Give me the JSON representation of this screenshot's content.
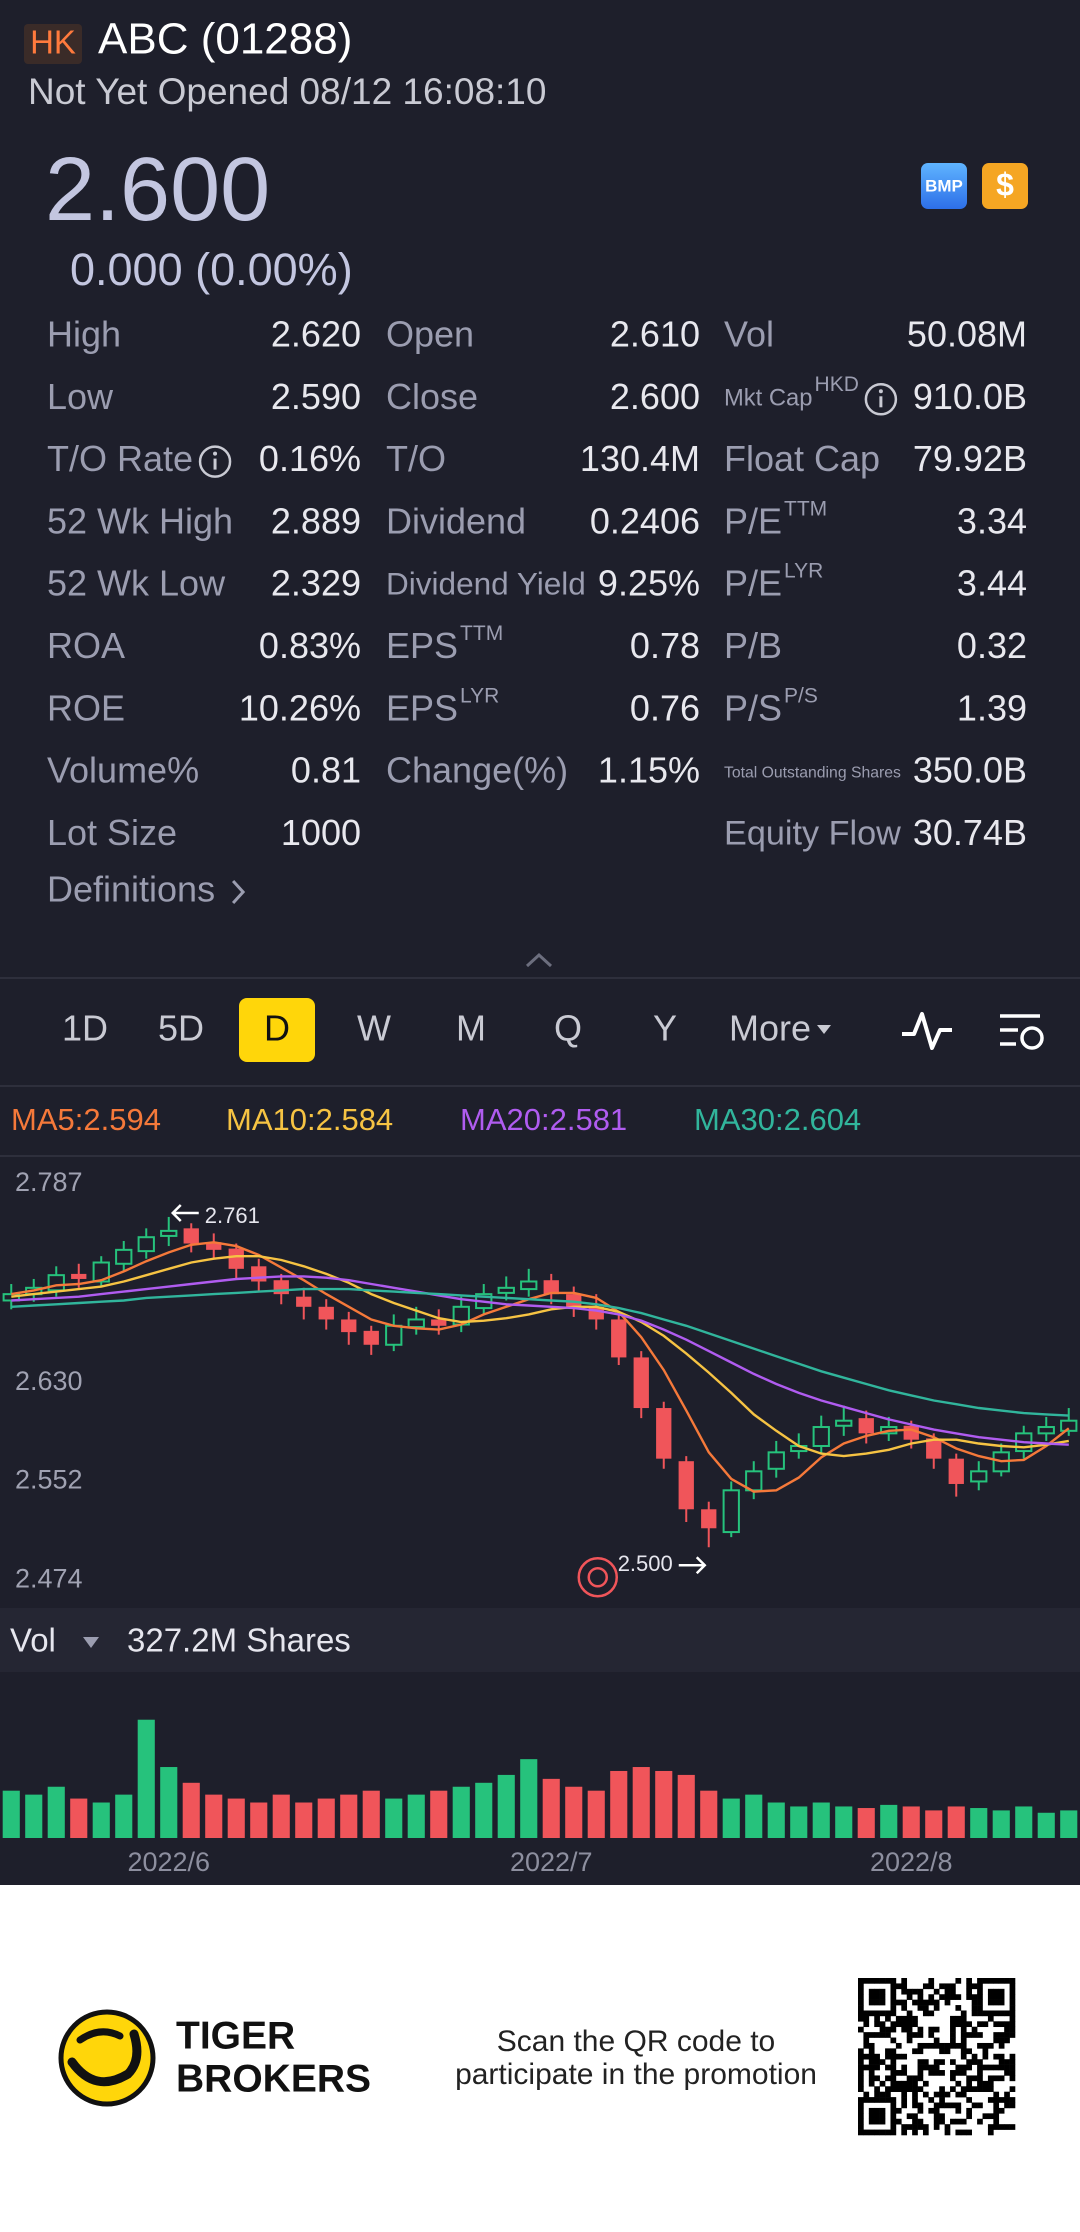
{
  "header": {
    "market": "HK",
    "name": "ABC (01288)",
    "status": "Not Yet Opened 08/12 16:08:10",
    "price": "2.600",
    "change": "0.000 (0.00%)",
    "badges": [
      "BMP",
      "$"
    ]
  },
  "stats": [
    [
      {
        "label": "High",
        "value": "2.620"
      },
      {
        "label": "Low",
        "value": "2.590"
      },
      {
        "label": "T/O Rate",
        "info": true,
        "value": "0.16%"
      },
      {
        "label": "52 Wk High",
        "value": "2.889"
      },
      {
        "label": "52 Wk Low",
        "value": "2.329"
      },
      {
        "label": "ROA",
        "value": "0.83%"
      },
      {
        "label": "ROE",
        "value": "10.26%"
      },
      {
        "label": "Volume%",
        "value": "0.81"
      },
      {
        "label": "Lot Size",
        "value": "1000"
      }
    ],
    [
      {
        "label": "Open",
        "value": "2.610"
      },
      {
        "label": "Close",
        "value": "2.600"
      },
      {
        "label": "T/O",
        "value": "130.4M"
      },
      {
        "label": "Dividend",
        "value": "0.2406"
      },
      {
        "label": "Dividend Yield",
        "value": "9.25%"
      },
      {
        "label": "EPS",
        "sup": "TTM",
        "value": "0.78"
      },
      {
        "label": "EPS",
        "sup": "LYR",
        "value": "0.76"
      },
      {
        "label": "Change(%)",
        "value": "1.15%"
      }
    ],
    [
      {
        "label": "Vol",
        "value": "50.08M"
      },
      {
        "label": "Mkt Cap",
        "sup": "HKD",
        "info": true,
        "value": "910.0B"
      },
      {
        "label": "Float Cap",
        "value": "79.92B"
      },
      {
        "label": "P/E",
        "sup": "TTM",
        "value": "3.34"
      },
      {
        "label": "P/E",
        "sup": "LYR",
        "value": "3.44"
      },
      {
        "label": "P/B",
        "value": "0.32"
      },
      {
        "label": "P/S",
        "sup": "P/S",
        "value": "1.39"
      },
      {
        "label": "Total Outstanding Shares",
        "value": "350.0B"
      },
      {
        "label": "Equity Flow",
        "value": "30.74B"
      }
    ]
  ],
  "definitions": "Definitions",
  "tabs": {
    "items": [
      "1D",
      "5D",
      "D",
      "W",
      "M",
      "Q",
      "Y",
      "More"
    ],
    "active": 2
  },
  "chart_data": {
    "type": "candlestick",
    "up_color": "#26c27c",
    "down_color": "#f0555a",
    "categories": [
      null,
      null,
      null,
      null,
      null,
      null,
      null,
      "2022/6",
      null,
      null,
      null,
      null,
      null,
      null,
      null,
      null,
      null,
      null,
      null,
      null,
      null,
      null,
      null,
      null,
      "2022/7",
      null,
      null,
      null,
      null,
      null,
      null,
      null,
      null,
      null,
      null,
      null,
      null,
      null,
      null,
      null,
      "2022/8",
      null,
      null,
      null,
      null,
      null,
      null,
      null
    ],
    "candles": {
      "open": [
        2.695,
        2.7,
        2.703,
        2.716,
        2.71,
        2.724,
        2.734,
        2.746,
        2.752,
        2.741,
        2.736,
        2.722,
        2.711,
        2.698,
        2.69,
        2.68,
        2.671,
        2.66,
        2.674,
        2.68,
        2.676,
        2.689,
        2.701,
        2.704,
        2.711,
        2.7,
        2.69,
        2.68,
        2.65,
        2.61,
        2.568,
        2.53,
        2.512,
        2.545,
        2.562,
        2.576,
        2.58,
        2.596,
        2.602,
        2.59,
        2.596,
        2.586,
        2.57,
        2.552,
        2.56,
        2.576,
        2.59,
        2.592
      ],
      "high": [
        2.708,
        2.712,
        2.722,
        2.724,
        2.73,
        2.742,
        2.752,
        2.761,
        2.756,
        2.748,
        2.74,
        2.728,
        2.716,
        2.705,
        2.696,
        2.686,
        2.675,
        2.684,
        2.69,
        2.688,
        2.698,
        2.708,
        2.714,
        2.72,
        2.716,
        2.706,
        2.7,
        2.684,
        2.655,
        2.615,
        2.572,
        2.536,
        2.552,
        2.568,
        2.584,
        2.59,
        2.604,
        2.612,
        2.608,
        2.603,
        2.6,
        2.59,
        2.574,
        2.568,
        2.582,
        2.596,
        2.603,
        2.61
      ],
      "low": [
        2.688,
        2.694,
        2.698,
        2.705,
        2.706,
        2.718,
        2.728,
        2.738,
        2.733,
        2.728,
        2.712,
        2.702,
        2.692,
        2.68,
        2.672,
        2.66,
        2.652,
        2.655,
        2.668,
        2.668,
        2.67,
        2.684,
        2.695,
        2.698,
        2.692,
        2.682,
        2.672,
        2.644,
        2.602,
        2.562,
        2.52,
        2.5,
        2.508,
        2.538,
        2.555,
        2.57,
        2.574,
        2.588,
        2.582,
        2.584,
        2.578,
        2.562,
        2.54,
        2.545,
        2.556,
        2.57,
        2.584,
        2.588
      ],
      "close": [
        2.7,
        2.705,
        2.715,
        2.712,
        2.725,
        2.735,
        2.745,
        2.75,
        2.74,
        2.735,
        2.72,
        2.71,
        2.7,
        2.69,
        2.68,
        2.67,
        2.66,
        2.675,
        2.68,
        2.675,
        2.69,
        2.7,
        2.705,
        2.71,
        2.7,
        2.69,
        2.68,
        2.65,
        2.61,
        2.57,
        2.53,
        2.515,
        2.545,
        2.56,
        2.575,
        2.58,
        2.595,
        2.6,
        2.59,
        2.595,
        2.585,
        2.57,
        2.55,
        2.56,
        2.575,
        2.59,
        2.595,
        2.6
      ]
    },
    "series": [
      {
        "name": "MA5:2.594",
        "color": "#f5793a",
        "values": [
          2.7,
          2.703,
          2.707,
          2.708,
          2.711,
          2.718,
          2.726,
          2.733,
          2.739,
          2.741,
          2.738,
          2.731,
          2.721,
          2.711,
          2.7,
          2.69,
          2.68,
          2.675,
          2.673,
          2.672,
          2.676,
          2.684,
          2.69,
          2.696,
          2.701,
          2.701,
          2.697,
          2.686,
          2.666,
          2.64,
          2.608,
          2.575,
          2.554,
          2.544,
          2.545,
          2.555,
          2.571,
          2.582,
          2.588,
          2.592,
          2.593,
          2.587,
          2.578,
          2.572,
          2.568,
          2.569,
          2.58,
          2.594
        ]
      },
      {
        "name": "MA10:2.584",
        "color": "#f6c343",
        "values": [
          2.698,
          2.7,
          2.702,
          2.704,
          2.706,
          2.71,
          2.715,
          2.72,
          2.725,
          2.728,
          2.73,
          2.73,
          2.727,
          2.722,
          2.716,
          2.709,
          2.7,
          2.693,
          2.687,
          2.681,
          2.678,
          2.679,
          2.681,
          2.684,
          2.688,
          2.69,
          2.69,
          2.686,
          2.678,
          2.667,
          2.653,
          2.638,
          2.622,
          2.605,
          2.592,
          2.58,
          2.574,
          2.572,
          2.574,
          2.577,
          2.582,
          2.585,
          2.585,
          2.582,
          2.58,
          2.579,
          2.581,
          2.584
        ]
      },
      {
        "name": "MA20:2.581",
        "color": "#b05cf0",
        "values": [
          2.695,
          2.696,
          2.697,
          2.698,
          2.7,
          2.702,
          2.704,
          2.706,
          2.708,
          2.71,
          2.712,
          2.713,
          2.714,
          2.714,
          2.713,
          2.711,
          2.708,
          2.705,
          2.702,
          2.699,
          2.696,
          2.694,
          2.692,
          2.691,
          2.69,
          2.689,
          2.687,
          2.684,
          2.679,
          2.672,
          2.664,
          2.655,
          2.646,
          2.637,
          2.629,
          2.622,
          2.616,
          2.611,
          2.606,
          2.601,
          2.597,
          2.593,
          2.59,
          2.587,
          2.585,
          2.583,
          2.582,
          2.581
        ]
      },
      {
        "name": "MA30:2.604",
        "color": "#31b59c",
        "values": [
          2.69,
          2.691,
          2.692,
          2.693,
          2.694,
          2.695,
          2.697,
          2.698,
          2.699,
          2.7,
          2.701,
          2.702,
          2.703,
          2.704,
          2.704,
          2.704,
          2.703,
          2.702,
          2.701,
          2.7,
          2.699,
          2.698,
          2.697,
          2.696,
          2.695,
          2.694,
          2.692,
          2.689,
          2.685,
          2.68,
          2.675,
          2.669,
          2.663,
          2.657,
          2.651,
          2.645,
          2.639,
          2.634,
          2.629,
          2.624,
          2.62,
          2.616,
          2.613,
          2.61,
          2.608,
          2.606,
          2.605,
          2.604
        ]
      }
    ],
    "ylim": [
      2.452,
      2.806
    ],
    "yticks": [
      {
        "value": 2.787,
        "label": "2.787"
      },
      {
        "value": 2.63,
        "label": "2.630"
      },
      {
        "value": 2.552,
        "label": "2.552"
      },
      {
        "value": 2.474,
        "label": "2.474"
      }
    ],
    "annotations": [
      {
        "value": 2.761,
        "label": "2.761"
      },
      {
        "value": 2.5,
        "label": "2.500"
      }
    ],
    "volume": {
      "title": "Vol",
      "total": "327.2M Shares",
      "ylim": [
        0,
        175
      ],
      "values": [
        60,
        55,
        65,
        50,
        45,
        55,
        150,
        90,
        70,
        55,
        50,
        45,
        55,
        45,
        50,
        55,
        60,
        50,
        55,
        60,
        65,
        70,
        80,
        100,
        75,
        65,
        60,
        85,
        90,
        85,
        80,
        60,
        50,
        55,
        45,
        40,
        45,
        40,
        38,
        42,
        40,
        35,
        40,
        38,
        35,
        40,
        32,
        35
      ]
    }
  },
  "footer": {
    "brand": [
      "TIGER",
      "BROKERS"
    ],
    "promo": [
      "Scan the QR code to",
      "participate in the promotion"
    ]
  }
}
